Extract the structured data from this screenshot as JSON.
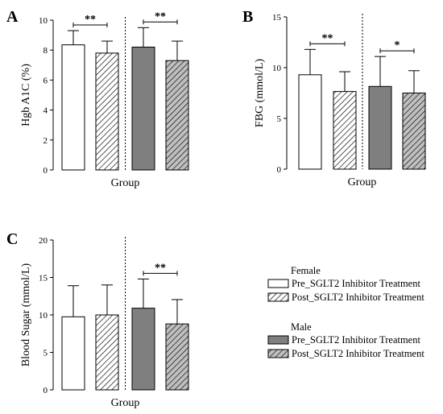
{
  "legend": {
    "groups": [
      {
        "title": "Female",
        "items": [
          {
            "label": "Pre_SGLT2 Inhibitor Treatment",
            "fill": "#ffffff",
            "hatch": false
          },
          {
            "label": "Post_SGLT2 Inhibitor Treatment",
            "fill": "#ffffff",
            "hatch": true
          }
        ]
      },
      {
        "title": "Male",
        "items": [
          {
            "label": "Pre_SGLT2 Inhibitor Treatment",
            "fill": "#7f7f7f",
            "hatch": false
          },
          {
            "label": "Post_SGLT2 Inhibitor Treatment",
            "fill": "#bfbfbf",
            "hatch": true
          }
        ]
      }
    ]
  },
  "chart_data": [
    {
      "panel": "A",
      "type": "bar",
      "xlabel": "Group",
      "ylabel": "Hgb A1C (%)",
      "ylim": [
        0,
        10
      ],
      "yticks": [
        0,
        2,
        4,
        6,
        8,
        10
      ],
      "categories": [
        "Female Pre",
        "Female Post",
        "Male Pre",
        "Male Post"
      ],
      "values": [
        8.35,
        7.8,
        8.2,
        7.3
      ],
      "errors": [
        0.95,
        0.8,
        1.3,
        1.3
      ],
      "significance": [
        {
          "pair": [
            0,
            1
          ],
          "label": "**"
        },
        {
          "pair": [
            2,
            3
          ],
          "label": "**"
        }
      ]
    },
    {
      "panel": "B",
      "type": "bar",
      "xlabel": "Group",
      "ylabel": "FBG (mmol/L)",
      "ylim": [
        0,
        15
      ],
      "yticks": [
        0,
        5,
        10,
        15
      ],
      "categories": [
        "Female Pre",
        "Female Post",
        "Male Pre",
        "Male Post"
      ],
      "values": [
        9.3,
        7.65,
        8.15,
        7.5
      ],
      "errors": [
        2.5,
        1.95,
        2.95,
        2.2
      ],
      "significance": [
        {
          "pair": [
            0,
            1
          ],
          "label": "**"
        },
        {
          "pair": [
            2,
            3
          ],
          "label": "*"
        }
      ]
    },
    {
      "panel": "C",
      "type": "bar",
      "xlabel": "Group",
      "ylabel": "Blood Sugar (mmol/L)",
      "ylim": [
        0,
        20
      ],
      "yticks": [
        0,
        5,
        10,
        15,
        20
      ],
      "categories": [
        "Female Pre",
        "Female Post",
        "Male Pre",
        "Male Post"
      ],
      "values": [
        9.75,
        10.0,
        10.9,
        8.8
      ],
      "errors": [
        4.15,
        4.0,
        3.9,
        3.25
      ],
      "significance": [
        {
          "pair": [
            2,
            3
          ],
          "label": "**"
        }
      ]
    }
  ]
}
